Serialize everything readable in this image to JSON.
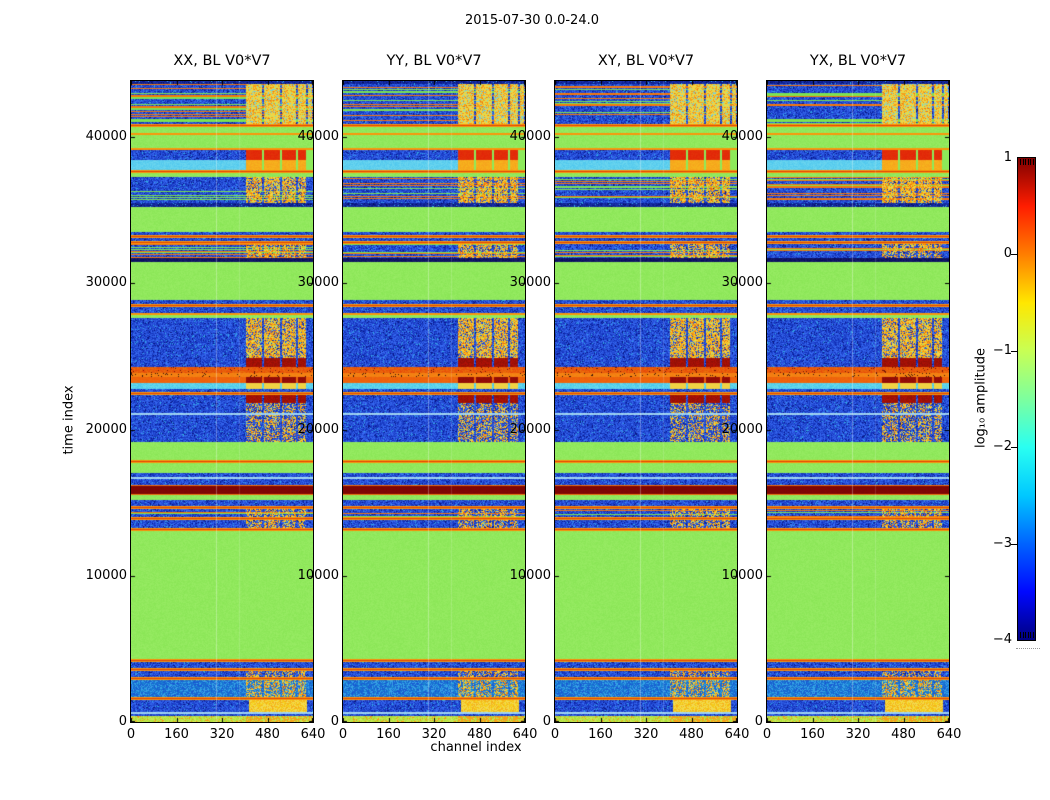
{
  "figure": {
    "suptitle": "2015-07-30 0.0-24.0",
    "background": "#ffffff"
  },
  "panels": [
    {
      "title": "XX, BL V0*V7"
    },
    {
      "title": "YY, BL V0*V7"
    },
    {
      "title": "XY, BL V0*V7"
    },
    {
      "title": "YX, BL V0*V7"
    }
  ],
  "axes": {
    "xlabel": "channel index",
    "ylabel": "time index",
    "xticks": [
      "0",
      "160",
      "320",
      "480",
      "640"
    ],
    "xtick_values": [
      0,
      160,
      320,
      480,
      640
    ],
    "yticks": [
      "0",
      "10000",
      "20000",
      "30000",
      "40000"
    ],
    "ytick_values": [
      0,
      10000,
      20000,
      30000,
      40000
    ],
    "x_range": [
      0,
      640
    ],
    "y_range": [
      0,
      43830
    ]
  },
  "colorbar": {
    "label": "log₁₀ amplitude",
    "ticks": [
      "1",
      "0",
      "−1",
      "−2",
      "−3",
      "−4"
    ],
    "tick_values": [
      1,
      0,
      -1,
      -2,
      -3,
      -4
    ],
    "colormap": "jet",
    "stops": [
      "#7F0000",
      "#FF1D00",
      "#FF7E00",
      "#FFE700",
      "#C8FF54",
      "#7DFF9E",
      "#2AFFF1",
      "#00C8FF",
      "#0063FF",
      "#0008FF",
      "#000080"
    ]
  },
  "chart_data": {
    "type": "heatmap",
    "title": "2015-07-30 0.0-24.0",
    "panels": [
      "XX, BL V0*V7",
      "YY, BL V0*V7",
      "XY, BL V0*V7",
      "YX, BL V0*V7"
    ],
    "x": {
      "label": "channel index",
      "range": [
        0,
        640
      ],
      "ticks": [
        0,
        160,
        320,
        480,
        640
      ]
    },
    "y": {
      "label": "time index",
      "range": [
        0,
        43830
      ],
      "ticks": [
        0,
        10000,
        20000,
        30000,
        40000
      ]
    },
    "z": {
      "label": "log₁₀ amplitude",
      "range": [
        -4,
        1
      ],
      "colormap": "jet"
    },
    "rfi_band": {
      "channel_range": [
        404,
        640
      ],
      "gap_channels": [
        460,
        515,
        566,
        605
      ]
    },
    "bands": [
      {
        "t": [
          43620,
          43830
        ],
        "kind": "blue",
        "tone": "dark"
      },
      {
        "t": [
          40880,
          43620
        ],
        "kind": "rfi_bright"
      },
      {
        "t": [
          40680,
          40880
        ],
        "kind": "oline"
      },
      {
        "t": [
          40270,
          40680
        ],
        "kind": "green"
      },
      {
        "t": [
          40130,
          40270
        ],
        "kind": "oline"
      },
      {
        "t": [
          39240,
          40130
        ],
        "kind": "green"
      },
      {
        "t": [
          39100,
          39240
        ],
        "kind": "oline"
      },
      {
        "t": [
          38420,
          39100
        ],
        "kind": "red_dashes"
      },
      {
        "t": [
          37730,
          38420
        ],
        "kind": "cyan_dashes"
      },
      {
        "t": [
          37530,
          37730
        ],
        "kind": "oline"
      },
      {
        "t": [
          37260,
          37530
        ],
        "kind": "green"
      },
      {
        "t": [
          35480,
          37260
        ],
        "kind": "blue",
        "rfi": 0.85,
        "lines": true
      },
      {
        "t": [
          35210,
          35480
        ],
        "kind": "blue",
        "tone": "dark"
      },
      {
        "t": [
          33500,
          35210
        ],
        "kind": "green"
      },
      {
        "t": [
          33290,
          33500
        ],
        "kind": "blue"
      },
      {
        "t": [
          33090,
          33290
        ],
        "kind": "oline"
      },
      {
        "t": [
          32880,
          33090
        ],
        "kind": "blue"
      },
      {
        "t": [
          32680,
          32880
        ],
        "kind": "oline"
      },
      {
        "t": [
          31720,
          32680
        ],
        "kind": "blue",
        "rfi": 0.7,
        "lines": true
      },
      {
        "t": [
          31450,
          31720
        ],
        "kind": "navy"
      },
      {
        "t": [
          28850,
          31450
        ],
        "kind": "green"
      },
      {
        "t": [
          28570,
          28850
        ],
        "kind": "blue"
      },
      {
        "t": [
          28370,
          28570
        ],
        "kind": "oline"
      },
      {
        "t": [
          27960,
          28370
        ],
        "kind": "blue"
      },
      {
        "t": [
          27820,
          27960
        ],
        "kind": "oline"
      },
      {
        "t": [
          27620,
          27820
        ],
        "kind": "green"
      },
      {
        "t": [
          24270,
          27620
        ],
        "kind": "blue",
        "rfi": 0.9,
        "dark": "bottom"
      },
      {
        "t": [
          23860,
          24270
        ],
        "kind": "red_band"
      },
      {
        "t": [
          23590,
          23860
        ],
        "kind": "orange_speckle"
      },
      {
        "t": [
          23180,
          23590
        ],
        "kind": "red_blocks"
      },
      {
        "t": [
          22770,
          23180
        ],
        "kind": "cyan_band"
      },
      {
        "t": [
          22560,
          22770
        ],
        "kind": "blue"
      },
      {
        "t": [
          22360,
          22560
        ],
        "kind": "oline"
      },
      {
        "t": [
          21810,
          22360
        ],
        "kind": "blue",
        "rfi": 1,
        "dark": "all"
      },
      {
        "t": [
          21130,
          21810
        ],
        "kind": "blue",
        "rfi": 0.5
      },
      {
        "t": [
          20990,
          21130
        ],
        "kind": "pale"
      },
      {
        "t": [
          19140,
          20990
        ],
        "kind": "blue",
        "rfi": 0.55
      },
      {
        "t": [
          17910,
          19140
        ],
        "kind": "green"
      },
      {
        "t": [
          17710,
          17910
        ],
        "kind": "oline"
      },
      {
        "t": [
          17020,
          17710
        ],
        "kind": "green"
      },
      {
        "t": [
          16750,
          17020
        ],
        "kind": "blue"
      },
      {
        "t": [
          16610,
          16750
        ],
        "kind": "pale"
      },
      {
        "t": [
          16200,
          16610
        ],
        "kind": "blue"
      },
      {
        "t": [
          15520,
          16200
        ],
        "kind": "maroon"
      },
      {
        "t": [
          15180,
          15520
        ],
        "kind": "green"
      },
      {
        "t": [
          14770,
          15180
        ],
        "kind": "blue"
      },
      {
        "t": [
          14560,
          14770
        ],
        "kind": "oline"
      },
      {
        "t": [
          14020,
          14560
        ],
        "kind": "blue",
        "rfi": 0.6,
        "lines": true
      },
      {
        "t": [
          13810,
          14020
        ],
        "kind": "oline"
      },
      {
        "t": [
          13260,
          13810
        ],
        "kind": "blue",
        "rfi": 0.6
      },
      {
        "t": [
          13060,
          13260
        ],
        "kind": "oline"
      },
      {
        "t": [
          4310,
          13060
        ],
        "kind": "green"
      },
      {
        "t": [
          4100,
          4310
        ],
        "kind": "oline"
      },
      {
        "t": [
          3690,
          4100
        ],
        "kind": "blue"
      },
      {
        "t": [
          3490,
          3690
        ],
        "kind": "oline"
      },
      {
        "t": [
          3080,
          3490
        ],
        "kind": "blue",
        "rfi": 0.5
      },
      {
        "t": [
          2870,
          3080
        ],
        "kind": "oline"
      },
      {
        "t": [
          1710,
          2870
        ],
        "kind": "blue_cyan",
        "rfi": 0.5
      },
      {
        "t": [
          1500,
          1710
        ],
        "kind": "oline"
      },
      {
        "t": [
          680,
          1500
        ],
        "kind": "blob"
      },
      {
        "t": [
          550,
          680
        ],
        "kind": "pale"
      },
      {
        "t": [
          410,
          550
        ],
        "kind": "blue"
      },
      {
        "t": [
          0,
          410
        ],
        "kind": "bottom_green"
      }
    ]
  }
}
